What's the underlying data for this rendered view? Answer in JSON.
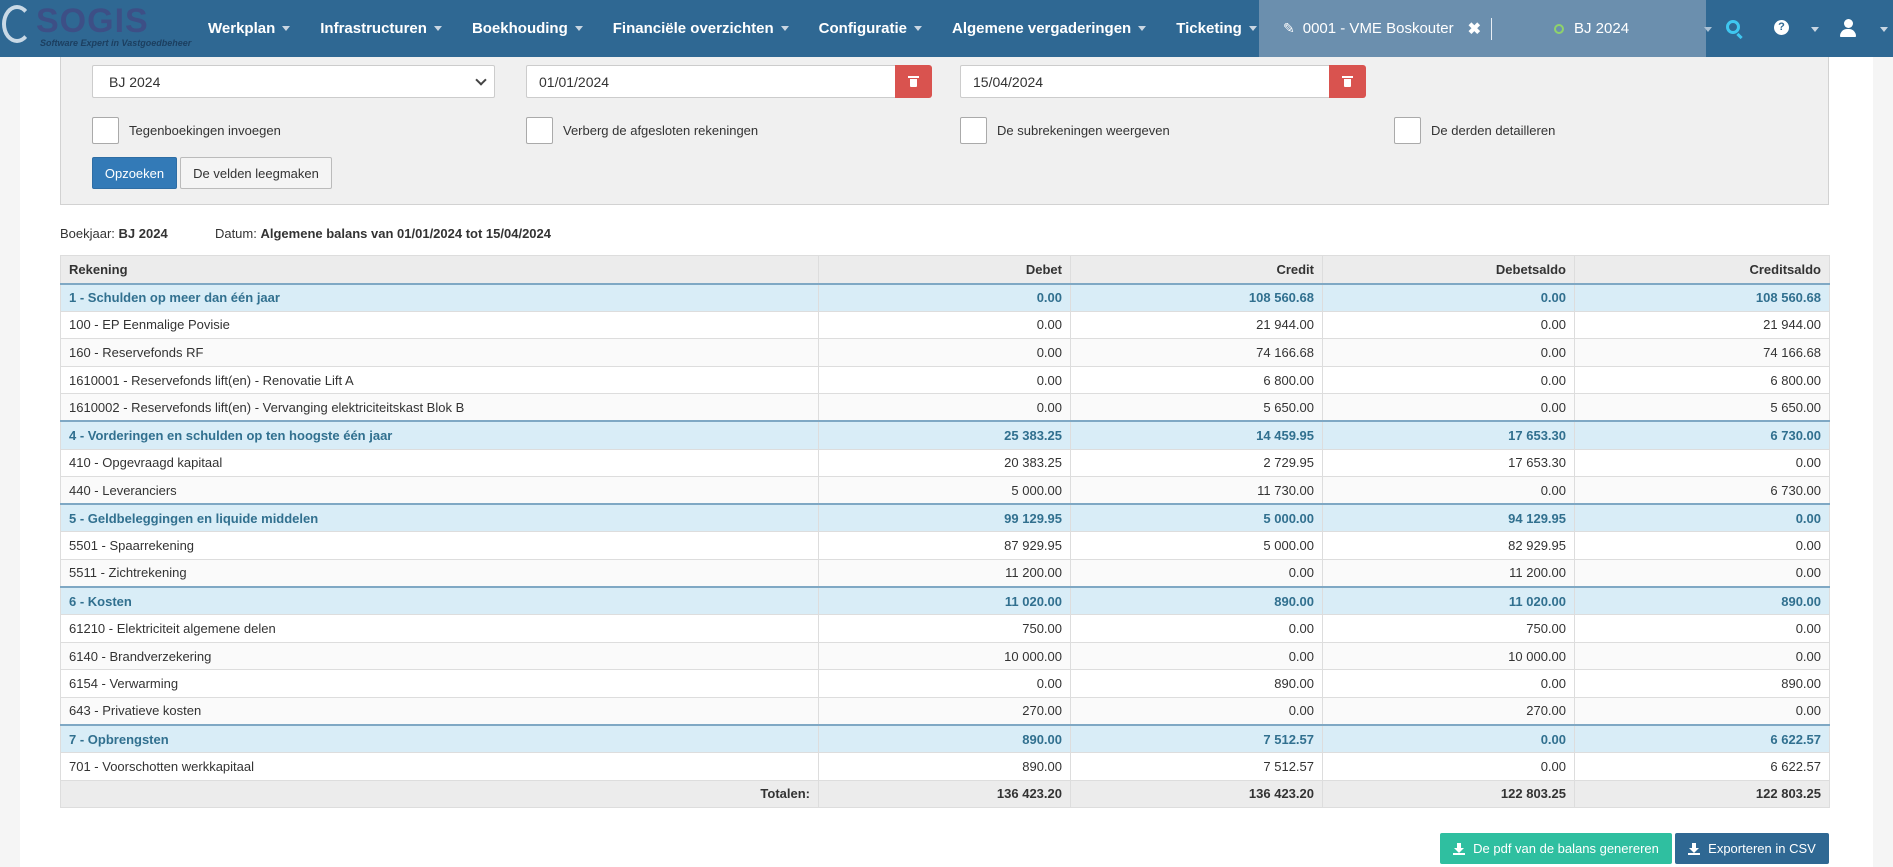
{
  "brand": {
    "name": "SOGIS",
    "tagline": "Software Expert in Vastgoedbeheer"
  },
  "nav": {
    "items": [
      {
        "label": "Werkplan"
      },
      {
        "label": "Infrastructuren"
      },
      {
        "label": "Boekhouding"
      },
      {
        "label": "Financiële overzichten"
      },
      {
        "label": "Configuratie"
      },
      {
        "label": "Algemene vergaderingen"
      },
      {
        "label": "Ticketing"
      }
    ],
    "vme_label": "0001 - VME Boskouter",
    "fiscal_year": "BJ 2024",
    "help_label": "?"
  },
  "form": {
    "fiscal_year_select": "BJ 2024",
    "date_from": "01/01/2024",
    "date_to": "15/04/2024",
    "checkboxes": [
      {
        "label": "Tegenboekingen invoegen"
      },
      {
        "label": "Verberg de afgesloten rekeningen"
      },
      {
        "label": "De subrekeningen weergeven"
      },
      {
        "label": "De derden detailleren"
      }
    ],
    "search_button": "Opzoeken",
    "clear_button": "De velden leegmaken"
  },
  "info": {
    "boekjaar_label": "Boekjaar:",
    "boekjaar_value": "BJ 2024",
    "datum_label": "Datum:",
    "datum_value": "Algemene balans van 01/01/2024 tot 15/04/2024"
  },
  "table": {
    "headers": [
      "Rekening",
      "Debet",
      "Credit",
      "Debetsaldo",
      "Creditsaldo"
    ],
    "rows": [
      {
        "type": "group",
        "cells": [
          "1 - Schulden op meer dan één jaar",
          "0.00",
          "108 560.68",
          "0.00",
          "108 560.68"
        ]
      },
      {
        "type": "sub",
        "cells": [
          "100 - EP Eenmalige Povisie",
          "0.00",
          "21 944.00",
          "0.00",
          "21 944.00"
        ]
      },
      {
        "type": "sub",
        "cells": [
          "160 - Reservefonds RF",
          "0.00",
          "74 166.68",
          "0.00",
          "74 166.68"
        ]
      },
      {
        "type": "sub",
        "cells": [
          "1610001 - Reservefonds lift(en) - Renovatie Lift A",
          "0.00",
          "6 800.00",
          "0.00",
          "6 800.00"
        ]
      },
      {
        "type": "sub",
        "cells": [
          "1610002 - Reservefonds lift(en) - Vervanging elektriciteitskast Blok B",
          "0.00",
          "5 650.00",
          "0.00",
          "5 650.00"
        ]
      },
      {
        "type": "group",
        "cells": [
          "4 - Vorderingen en schulden op ten hoogste één jaar",
          "25 383.25",
          "14 459.95",
          "17 653.30",
          "6 730.00"
        ]
      },
      {
        "type": "sub",
        "cells": [
          "410 - Opgevraagd kapitaal",
          "20 383.25",
          "2 729.95",
          "17 653.30",
          "0.00"
        ]
      },
      {
        "type": "sub",
        "cells": [
          "440 - Leveranciers",
          "5 000.00",
          "11 730.00",
          "0.00",
          "6 730.00"
        ]
      },
      {
        "type": "group",
        "cells": [
          "5 - Geldbeleggingen en liquide middelen",
          "99 129.95",
          "5 000.00",
          "94 129.95",
          "0.00"
        ]
      },
      {
        "type": "sub",
        "cells": [
          "5501 - Spaarrekening",
          "87 929.95",
          "5 000.00",
          "82 929.95",
          "0.00"
        ]
      },
      {
        "type": "sub",
        "cells": [
          "5511 - Zichtrekening",
          "11 200.00",
          "0.00",
          "11 200.00",
          "0.00"
        ]
      },
      {
        "type": "group",
        "cells": [
          "6 - Kosten",
          "11 020.00",
          "890.00",
          "11 020.00",
          "890.00"
        ]
      },
      {
        "type": "sub",
        "cells": [
          "61210 - Elektriciteit algemene delen",
          "750.00",
          "0.00",
          "750.00",
          "0.00"
        ]
      },
      {
        "type": "sub",
        "cells": [
          "6140 - Brandverzekering",
          "10 000.00",
          "0.00",
          "10 000.00",
          "0.00"
        ]
      },
      {
        "type": "sub",
        "cells": [
          "6154 - Verwarming",
          "0.00",
          "890.00",
          "0.00",
          "890.00"
        ]
      },
      {
        "type": "sub",
        "cells": [
          "643 - Privatieve kosten",
          "270.00",
          "0.00",
          "270.00",
          "0.00"
        ]
      },
      {
        "type": "group",
        "cells": [
          "7 - Opbrengsten",
          "890.00",
          "7 512.57",
          "0.00",
          "6 622.57"
        ]
      },
      {
        "type": "sub",
        "cells": [
          "701 - Voorschotten werkkapitaal",
          "890.00",
          "7 512.57",
          "0.00",
          "6 622.57"
        ]
      }
    ],
    "totals": {
      "label": "Totalen:",
      "cells": [
        "136 423.20",
        "136 423.20",
        "122 803.25",
        "122 803.25"
      ]
    }
  },
  "actions": {
    "pdf_button": "De pdf van de balans genereren",
    "csv_button": "Exporteren in CSV"
  },
  "colors": {
    "navbar": "#2f6893",
    "group_row_bg": "#d9edf7",
    "group_row_text": "#31708f",
    "danger": "#d9534f",
    "primary": "#337ab7",
    "teal": "#2fbfa0"
  },
  "icons": [
    "pencil-icon",
    "close-icon",
    "status-dot-icon",
    "search-icon",
    "help-icon",
    "user-icon",
    "trash-icon",
    "download-icon",
    "chevron-down-icon"
  ]
}
